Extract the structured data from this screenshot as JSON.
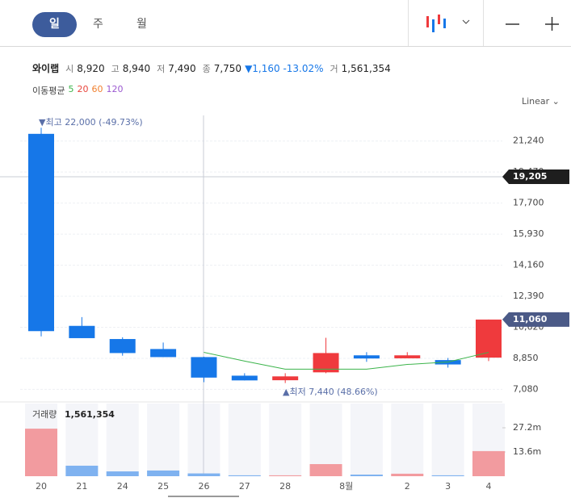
{
  "header": {
    "tabs": [
      "일",
      "주",
      "월"
    ]
  },
  "summary": {
    "name": "와이랩",
    "items": [
      {
        "label": "시",
        "value": "8,920"
      },
      {
        "label": "고",
        "value": "8,940"
      },
      {
        "label": "저",
        "value": "7,490"
      },
      {
        "label": "종",
        "value": "7,750"
      }
    ],
    "change": "▼1,160 -13.02%",
    "volume_label": "거",
    "volume": "1,561,354"
  },
  "ma_legend": {
    "label": "이동평균",
    "items": [
      {
        "text": "5",
        "color": "#3cb44b"
      },
      {
        "text": "20",
        "color": "#e8453c"
      },
      {
        "text": "60",
        "color": "#f08030"
      },
      {
        "text": "120",
        "color": "#9b59d0"
      }
    ]
  },
  "scale_menu": "Linear",
  "chart_data": {
    "type": "candlestick",
    "categories": [
      "20",
      "21",
      "24",
      "25",
      "26",
      "27",
      "28",
      null,
      null,
      "2",
      "3",
      "4"
    ],
    "month_label": "8월",
    "open": [
      21650,
      10700,
      9950,
      9380,
      8920,
      7860,
      7600,
      8050,
      9020,
      8850,
      8750,
      8890
    ],
    "high": [
      22000,
      11200,
      10050,
      9750,
      8940,
      8000,
      8000,
      10020,
      9200,
      9200,
      8870,
      11060
    ],
    "low": [
      10100,
      10000,
      9000,
      8920,
      7490,
      7590,
      7440,
      8000,
      8650,
      8950,
      8320,
      8690
    ],
    "close": [
      10400,
      10000,
      9150,
      8920,
      7750,
      7590,
      7820,
      9150,
      8840,
      9020,
      8500,
      11060
    ],
    "up_color": "#ef3a3d",
    "down_color": "#1677e8",
    "ylim": [
      6500,
      22700
    ],
    "yticks": [
      {
        "value": 7080,
        "label": "7,080"
      },
      {
        "value": 8850,
        "label": "8,850"
      },
      {
        "value": 10620,
        "label": "10,620"
      },
      {
        "value": 12390,
        "label": "12,390"
      },
      {
        "value": 14160,
        "label": "14,160"
      },
      {
        "value": 15930,
        "label": "15,930"
      },
      {
        "value": 17700,
        "label": "17,700"
      },
      {
        "value": 19470,
        "label": "19,470"
      },
      {
        "value": 21240,
        "label": "21,240"
      }
    ],
    "grid": true,
    "ma": {
      "name": "5",
      "color": "#3cb44b",
      "values": [
        null,
        null,
        null,
        null,
        9190,
        8690,
        8230,
        8230,
        8230,
        8500,
        8640,
        9190
      ]
    },
    "high_annotation": "▼최고 22,000 (-49.73%)",
    "low_annotation": "▲최저 7,440 (48.66%)",
    "crosshair_price": {
      "value": 19205,
      "label": "19,205"
    },
    "last_price": {
      "value": 11060,
      "label": "11,060"
    },
    "volume": {
      "title": "거래량",
      "value_label": "1,561,354",
      "values": [
        26.7,
        5.9,
        2.7,
        3.2,
        1.56,
        0.5,
        0.5,
        6.8,
        0.9,
        1.4,
        0.5,
        14.1
      ],
      "colors": [
        "#f29b9f",
        "#7fb2f0",
        "#7fb2f0",
        "#7fb2f0",
        "#7fb2f0",
        "#7fb2f0",
        "#f29b9f",
        "#f29b9f",
        "#7fb2f0",
        "#f29b9f",
        "#7fb2f0",
        "#f29b9f"
      ],
      "ylim": [
        0,
        40.8
      ],
      "yticks": [
        {
          "value": 13.6,
          "label": "13.6m"
        },
        {
          "value": 27.2,
          "label": "27.2m"
        }
      ]
    }
  }
}
